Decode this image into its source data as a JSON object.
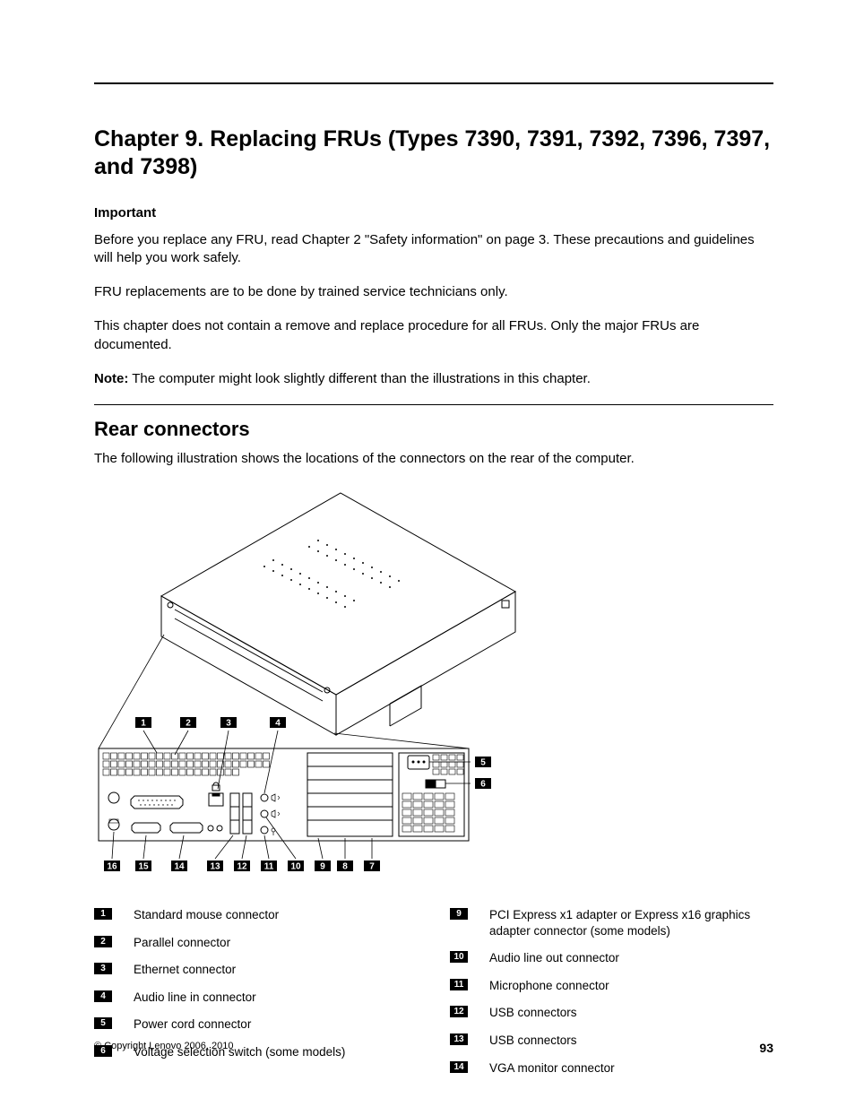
{
  "chapter": {
    "title": "Chapter 9.  Replacing FRUs (Types 7390, 7391, 7392, 7396, 7397, and 7398)"
  },
  "important_label": "Important",
  "paragraphs": {
    "p1": "Before you replace any FRU, read Chapter 2 \"Safety information\" on page 3.  These precautions and guidelines will help you work safely.",
    "p2": "FRU replacements are to be done by trained service technicians only.",
    "p3": "This chapter does not contain a remove and replace procedure for all FRUs.  Only the major FRUs are documented.",
    "note_label": "Note:",
    "note_text": " The computer might look slightly different than the illustrations in this chapter."
  },
  "section": {
    "title": "Rear connectors",
    "intro": "The following illustration shows the locations of the connectors on the rear of the computer."
  },
  "diagram": {
    "callouts_top": [
      "1",
      "2",
      "3",
      "4"
    ],
    "callouts_right": [
      "5",
      "6"
    ],
    "callouts_bottom": [
      "16",
      "15",
      "14",
      "13",
      "12",
      "11",
      "10",
      "9",
      "8",
      "7"
    ],
    "stroke_color": "#000000",
    "stroke_width": 1,
    "background": "#ffffff"
  },
  "legend": {
    "left": [
      {
        "n": "1",
        "t": "Standard mouse connector"
      },
      {
        "n": "2",
        "t": "Parallel connector"
      },
      {
        "n": "3",
        "t": "Ethernet connector"
      },
      {
        "n": "4",
        "t": "Audio line in connector"
      },
      {
        "n": "5",
        "t": "Power cord connector"
      },
      {
        "n": "6",
        "t": "Voltage selection switch (some models)"
      }
    ],
    "right": [
      {
        "n": "9",
        "t": "PCI Express x1 adapter or Express x16 graphics adapter connector (some models)"
      },
      {
        "n": "10",
        "t": "Audio line out connector"
      },
      {
        "n": "11",
        "t": "Microphone connector"
      },
      {
        "n": "12",
        "t": "USB connectors"
      },
      {
        "n": "13",
        "t": "USB connectors"
      },
      {
        "n": "14",
        "t": "VGA monitor connector"
      }
    ]
  },
  "footer": {
    "copyright": "© Copyright Lenovo 2006, 2010",
    "page_number": "93"
  },
  "colors": {
    "text": "#000000",
    "bg": "#ffffff",
    "callout_bg": "#000000",
    "callout_fg": "#ffffff"
  }
}
